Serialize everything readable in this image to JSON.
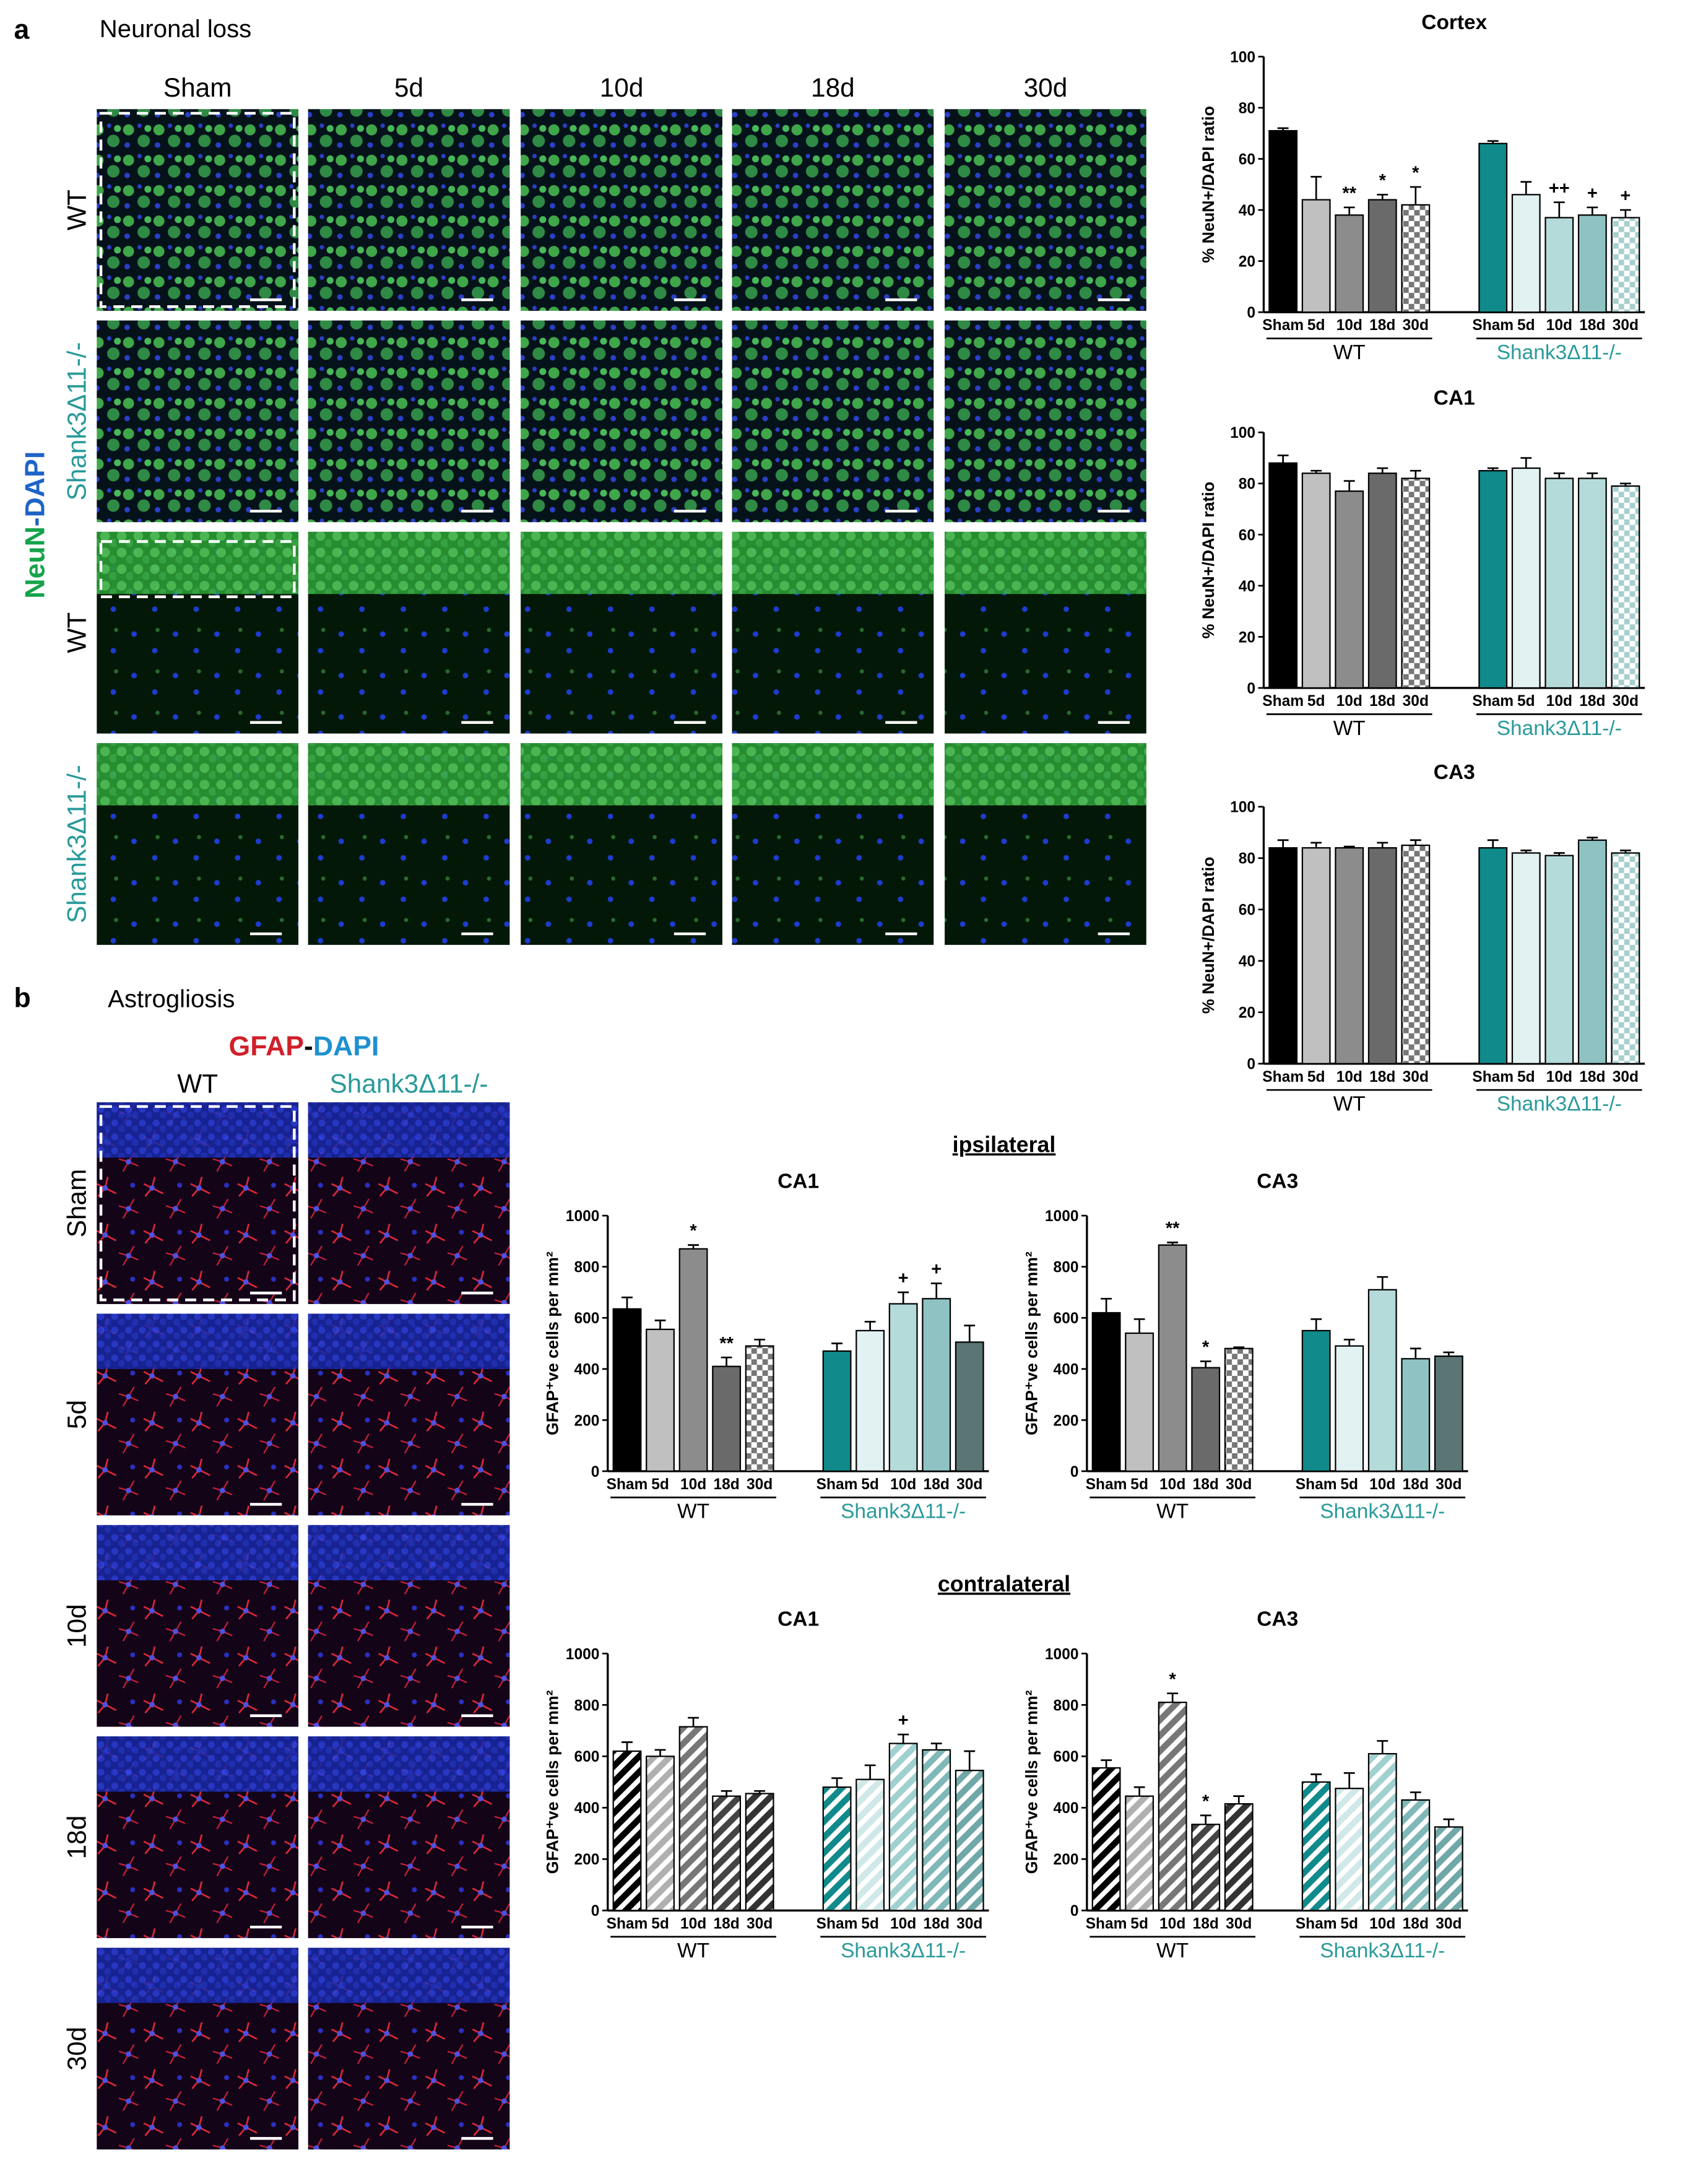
{
  "figure": {
    "panel_a": {
      "letter": "a",
      "title": "Neuronal loss",
      "columns": [
        "Sham",
        "5d",
        "10d",
        "18d",
        "30d"
      ],
      "rows": [
        "WT",
        "Shank3Δ11-/-",
        "WT",
        "Shank3Δ11-/-"
      ],
      "stain": [
        "NeuN",
        "-DAPI"
      ]
    },
    "panel_b": {
      "letter": "b",
      "title": "Astrogliosis",
      "stain": [
        "GFAP",
        "-",
        "DAPI"
      ],
      "columns": [
        "WT",
        "Shank3Δ11-/-"
      ],
      "rows": [
        "Sham",
        "5d",
        "10d",
        "18d",
        "30d"
      ],
      "section_labels": [
        "ipsilateral",
        "contralateral"
      ]
    }
  },
  "chart_data": [
    {
      "type": "bar",
      "title": "Cortex",
      "ylabel": "% NeuN+/DAPI ratio",
      "ylim": [
        0,
        100
      ],
      "yticks": [
        0,
        20,
        40,
        60,
        80,
        100
      ],
      "categories": [
        "Sham",
        "5d",
        "10d",
        "18d",
        "30d",
        "Sham",
        "5d",
        "10d",
        "18d",
        "30d"
      ],
      "groups": [
        {
          "name": "WT",
          "color": "#000000"
        },
        {
          "name": "Shank3Δ11-/-",
          "color": "#2a9a9a"
        }
      ],
      "values": [
        71,
        44,
        38,
        44,
        42,
        66,
        46,
        37,
        38,
        37
      ],
      "errors": [
        1,
        9,
        3,
        2,
        7,
        1,
        5,
        6,
        3,
        3
      ],
      "annotations": [
        null,
        null,
        "**",
        "*",
        "*",
        null,
        null,
        "++",
        "+",
        "+"
      ],
      "colors": [
        "#000000",
        "#c0c0c0",
        "#8c8c8c",
        "#6a6a6a",
        "#777777",
        "#108a8a",
        "#e2f1f1",
        "#b5dada",
        "#8fc3c3",
        "#a8cfcf"
      ],
      "patterns": [
        "solid",
        "solid",
        "solid",
        "solid",
        "checker",
        "solid",
        "solid",
        "solid",
        "solid",
        "checker"
      ]
    },
    {
      "type": "bar",
      "title": "CA1",
      "ylabel": "% NeuN+/DAPI ratio",
      "ylim": [
        0,
        100
      ],
      "yticks": [
        0,
        20,
        40,
        60,
        80,
        100
      ],
      "categories": [
        "Sham",
        "5d",
        "10d",
        "18d",
        "30d",
        "Sham",
        "5d",
        "10d",
        "18d",
        "30d"
      ],
      "groups": [
        {
          "name": "WT",
          "color": "#000000"
        },
        {
          "name": "Shank3Δ11-/-",
          "color": "#2a9a9a"
        }
      ],
      "values": [
        88,
        84,
        77,
        84,
        82,
        85,
        86,
        82,
        82,
        79
      ],
      "errors": [
        3,
        1,
        4,
        2,
        3,
        1,
        4,
        2,
        2,
        1
      ],
      "annotations": [
        null,
        null,
        null,
        null,
        null,
        null,
        null,
        null,
        null,
        null
      ],
      "colors": [
        "#000000",
        "#c0c0c0",
        "#8c8c8c",
        "#6a6a6a",
        "#777777",
        "#108a8a",
        "#e2f1f1",
        "#b5dada",
        "#b5dada",
        "#a8cfcf"
      ],
      "patterns": [
        "solid",
        "solid",
        "solid",
        "solid",
        "checker",
        "solid",
        "solid",
        "solid",
        "solid",
        "checker"
      ]
    },
    {
      "type": "bar",
      "title": "CA3",
      "ylabel": "% NeuN+/DAPI ratio",
      "ylim": [
        0,
        100
      ],
      "yticks": [
        0,
        20,
        40,
        60,
        80,
        100
      ],
      "categories": [
        "Sham",
        "5d",
        "10d",
        "18d",
        "30d",
        "Sham",
        "5d",
        "10d",
        "18d",
        "30d"
      ],
      "groups": [
        {
          "name": "WT",
          "color": "#000000"
        },
        {
          "name": "Shank3Δ11-/-",
          "color": "#2a9a9a"
        }
      ],
      "values": [
        84,
        84,
        84,
        84,
        85,
        84,
        82,
        81,
        87,
        82
      ],
      "errors": [
        3,
        2,
        0.5,
        2,
        2,
        3,
        1,
        1,
        1,
        1
      ],
      "annotations": [
        null,
        null,
        null,
        null,
        null,
        null,
        null,
        null,
        null,
        null
      ],
      "colors": [
        "#000000",
        "#c0c0c0",
        "#8c8c8c",
        "#6a6a6a",
        "#777777",
        "#108a8a",
        "#e2f1f1",
        "#b5dada",
        "#8fc3c3",
        "#a8cfcf"
      ],
      "patterns": [
        "solid",
        "solid",
        "solid",
        "solid",
        "checker",
        "solid",
        "solid",
        "solid",
        "solid",
        "checker"
      ]
    },
    {
      "type": "bar",
      "title": "CA1",
      "ylabel": "GFAP⁺ve cells per mm²",
      "ylim": [
        0,
        1000
      ],
      "yticks": [
        0,
        200,
        400,
        600,
        800,
        1000
      ],
      "categories": [
        "Sham",
        "5d",
        "10d",
        "18d",
        "30d",
        "Sham",
        "5d",
        "10d",
        "18d",
        "30d"
      ],
      "groups": [
        {
          "name": "WT",
          "color": "#000000"
        },
        {
          "name": "Shank3Δ11-/-",
          "color": "#2a9a9a"
        }
      ],
      "values": [
        635,
        555,
        870,
        410,
        490,
        470,
        550,
        655,
        675,
        505
      ],
      "errors": [
        45,
        35,
        15,
        35,
        25,
        30,
        35,
        45,
        60,
        65
      ],
      "annotations": [
        null,
        null,
        "*",
        "**",
        null,
        null,
        null,
        "+",
        "+",
        null
      ],
      "colors": [
        "#000000",
        "#c0c0c0",
        "#8c8c8c",
        "#6a6a6a",
        "#777777",
        "#108a8a",
        "#e2f1f1",
        "#b5dada",
        "#8fc3c3",
        "#5b7474"
      ],
      "patterns": [
        "solid",
        "solid",
        "solid",
        "solid",
        "checker",
        "solid",
        "solid",
        "solid",
        "solid",
        "solid"
      ]
    },
    {
      "type": "bar",
      "title": "CA3",
      "ylabel": "GFAP⁺ve cells per mm²",
      "ylim": [
        0,
        1000
      ],
      "yticks": [
        0,
        200,
        400,
        600,
        800,
        1000
      ],
      "categories": [
        "Sham",
        "5d",
        "10d",
        "18d",
        "30d",
        "Sham",
        "5d",
        "10d",
        "18d",
        "30d"
      ],
      "groups": [
        {
          "name": "WT",
          "color": "#000000"
        },
        {
          "name": "Shank3Δ11-/-",
          "color": "#2a9a9a"
        }
      ],
      "values": [
        620,
        540,
        885,
        405,
        480,
        550,
        490,
        710,
        440,
        450
      ],
      "errors": [
        55,
        55,
        10,
        25,
        5,
        45,
        25,
        50,
        40,
        15
      ],
      "annotations": [
        null,
        null,
        "**",
        "*",
        null,
        null,
        null,
        null,
        null,
        null
      ],
      "colors": [
        "#000000",
        "#c0c0c0",
        "#8c8c8c",
        "#6a6a6a",
        "#777777",
        "#108a8a",
        "#e2f1f1",
        "#b5dada",
        "#8fc3c3",
        "#5b7474"
      ],
      "patterns": [
        "solid",
        "solid",
        "solid",
        "solid",
        "checker",
        "solid",
        "solid",
        "solid",
        "solid",
        "solid"
      ]
    },
    {
      "type": "bar",
      "title": "CA1",
      "ylabel": "GFAP⁺ve cells per mm²",
      "ylim": [
        0,
        1000
      ],
      "yticks": [
        0,
        200,
        400,
        600,
        800,
        1000
      ],
      "categories": [
        "Sham",
        "5d",
        "10d",
        "18d",
        "30d",
        "Sham",
        "5d",
        "10d",
        "18d",
        "30d"
      ],
      "groups": [
        {
          "name": "WT",
          "color": "#000000"
        },
        {
          "name": "Shank3Δ11-/-",
          "color": "#2a9a9a"
        }
      ],
      "values": [
        620,
        600,
        715,
        445,
        455,
        480,
        510,
        650,
        625,
        545
      ],
      "errors": [
        35,
        25,
        35,
        20,
        10,
        35,
        55,
        35,
        25,
        75
      ],
      "annotations": [
        null,
        null,
        null,
        null,
        null,
        null,
        null,
        "+",
        null,
        null
      ],
      "colors": [
        "#000000",
        "#b0b0b0",
        "#777777",
        "#444444",
        "#333333",
        "#108a8a",
        "#d0e8e8",
        "#a0d0d0",
        "#80b8b8",
        "#70a8a8"
      ],
      "patterns": [
        "hatch",
        "hatch",
        "hatch",
        "hatch",
        "hatch",
        "hatch",
        "hatch",
        "hatch",
        "hatch",
        "hatch"
      ]
    },
    {
      "type": "bar",
      "title": "CA3",
      "ylabel": "GFAP⁺ve cells per mm²",
      "ylim": [
        0,
        1000
      ],
      "yticks": [
        0,
        200,
        400,
        600,
        800,
        1000
      ],
      "categories": [
        "Sham",
        "5d",
        "10d",
        "18d",
        "30d",
        "Sham",
        "5d",
        "10d",
        "18d",
        "30d"
      ],
      "groups": [
        {
          "name": "WT",
          "color": "#000000"
        },
        {
          "name": "Shank3Δ11-/-",
          "color": "#2a9a9a"
        }
      ],
      "values": [
        555,
        445,
        810,
        335,
        415,
        500,
        475,
        610,
        430,
        325
      ],
      "errors": [
        30,
        35,
        35,
        35,
        30,
        30,
        60,
        50,
        30,
        30
      ],
      "annotations": [
        null,
        null,
        "*",
        "*",
        null,
        null,
        null,
        null,
        null,
        null
      ],
      "colors": [
        "#000000",
        "#b0b0b0",
        "#777777",
        "#444444",
        "#333333",
        "#108a8a",
        "#d0e8e8",
        "#a0d0d0",
        "#80b8b8",
        "#70a8a8"
      ],
      "patterns": [
        "hatch",
        "hatch",
        "hatch",
        "hatch",
        "hatch",
        "hatch",
        "hatch",
        "hatch",
        "hatch",
        "hatch"
      ]
    }
  ]
}
